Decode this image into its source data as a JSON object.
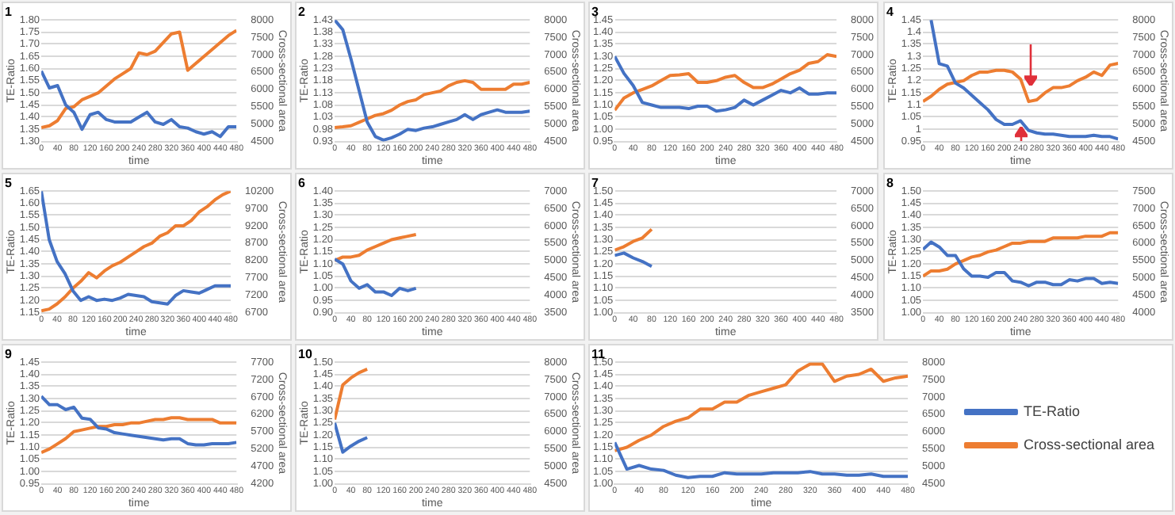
{
  "chart_data": [
    {
      "type": "line",
      "title": "1",
      "xlabel": "time",
      "ylabel": "TE-Ratio",
      "y2label": "Cross-sectional area",
      "marker": "none",
      "grid": "y",
      "x": [
        0,
        20,
        40,
        60,
        80,
        100,
        120,
        140,
        160,
        180,
        200,
        220,
        240,
        260,
        280,
        300,
        320,
        340,
        360,
        380,
        400,
        420,
        440,
        460,
        480
      ],
      "xlim": [
        0,
        480
      ],
      "xticks": [
        0,
        40,
        80,
        120,
        160,
        200,
        240,
        280,
        320,
        360,
        400,
        440,
        480
      ],
      "ylim": [
        1.3,
        1.8
      ],
      "yticks": [
        {
          "value": 1.3,
          "label": "1.30"
        },
        1.35,
        {
          "value": 1.4,
          "label": "1.40"
        },
        1.45,
        {
          "value": 1.5,
          "label": "1.50"
        },
        1.55,
        {
          "value": 1.6,
          "label": "1.60"
        },
        1.65,
        {
          "value": 1.7,
          "label": "1.70"
        },
        1.75,
        {
          "value": 1.8,
          "label": "1.80"
        }
      ],
      "y2lim": [
        4500,
        8000
      ],
      "y2ticks": [
        4500,
        5000,
        5500,
        6000,
        6500,
        7000,
        7500,
        8000
      ],
      "series": [
        {
          "color": "#4472c4",
          "values": [
            1.59,
            1.52,
            1.53,
            1.45,
            1.42,
            1.35,
            1.41,
            1.42,
            1.39,
            1.38,
            1.38,
            1.38,
            1.4,
            1.42,
            1.38,
            1.37,
            1.39,
            1.36,
            1.355,
            1.34,
            1.33,
            1.34,
            1.32,
            1.36,
            1.36
          ]
        },
        {
          "color": "#ed7d31",
          "axis": "y2",
          "values": [
            4900,
            4950,
            5100,
            5450,
            5500,
            5700,
            5800,
            5900,
            6100,
            6300,
            6450,
            6600,
            7050,
            7000,
            7100,
            7350,
            7600,
            7650,
            6550,
            6750,
            6950,
            7150,
            7350,
            7550,
            7700
          ]
        }
      ]
    },
    {
      "type": "line",
      "title": "2",
      "xlabel": "time",
      "ylabel": "TE-Ratio",
      "y2label": "Cross-sectional area",
      "marker": "none",
      "grid": "y",
      "x": [
        0,
        20,
        40,
        60,
        80,
        100,
        120,
        140,
        160,
        180,
        200,
        220,
        240,
        260,
        280,
        300,
        320,
        340,
        360,
        380,
        400,
        420,
        440,
        460,
        480
      ],
      "xlim": [
        0,
        480
      ],
      "xticks": [
        0,
        40,
        80,
        120,
        160,
        200,
        240,
        280,
        320,
        360,
        400,
        440,
        480
      ],
      "ylim": [
        0.93,
        1.43
      ],
      "yticks": [
        0.93,
        0.98,
        1.03,
        1.08,
        1.13,
        1.18,
        1.23,
        1.28,
        1.33,
        1.38,
        1.43
      ],
      "y2lim": [
        4500,
        8000
      ],
      "y2ticks": [
        4500,
        5000,
        5500,
        6000,
        6500,
        7000,
        7500,
        8000
      ],
      "series": [
        {
          "color": "#4472c4",
          "values": [
            1.43,
            1.39,
            1.27,
            1.14,
            1.01,
            0.95,
            0.935,
            0.945,
            0.96,
            0.98,
            0.975,
            0.985,
            0.99,
            1.0,
            1.01,
            1.02,
            1.04,
            1.02,
            1.04,
            1.05,
            1.06,
            1.05,
            1.05,
            1.05,
            1.055
          ]
        },
        {
          "color": "#ed7d31",
          "axis": "y2",
          "values": [
            4900,
            4920,
            4950,
            5050,
            5150,
            5250,
            5300,
            5400,
            5550,
            5650,
            5700,
            5850,
            5900,
            5950,
            6100,
            6200,
            6250,
            6200,
            6000,
            6000,
            6000,
            6000,
            6150,
            6150,
            6200
          ]
        }
      ]
    },
    {
      "type": "line",
      "title": "3",
      "xlabel": "time",
      "marker": "none",
      "grid": "y",
      "x": [
        0,
        20,
        40,
        60,
        80,
        100,
        120,
        140,
        160,
        180,
        200,
        220,
        240,
        260,
        280,
        300,
        320,
        340,
        360,
        380,
        400,
        420,
        440,
        460,
        480
      ],
      "xlim": [
        0,
        480
      ],
      "xticks": [
        0,
        40,
        80,
        120,
        160,
        200,
        240,
        280,
        320,
        360,
        400,
        440,
        480
      ],
      "ylim": [
        0.95,
        1.45
      ],
      "yticks": [
        0.95,
        {
          "value": 1,
          "label": "1.00"
        },
        1.05,
        {
          "value": 1.1,
          "label": "1.10"
        },
        1.15,
        {
          "value": 1.2,
          "label": "1.20"
        },
        1.25,
        {
          "value": 1.3,
          "label": "1.30"
        },
        1.35,
        {
          "value": 1.4,
          "label": "1.40"
        },
        1.45
      ],
      "y2lim": [
        4500,
        8000
      ],
      "y2ticks": [
        4500,
        5000,
        5500,
        6000,
        6500,
        7000,
        7500,
        8000
      ],
      "series": [
        {
          "color": "#4472c4",
          "values": [
            1.3,
            1.23,
            1.18,
            1.11,
            1.1,
            1.09,
            1.09,
            1.09,
            1.085,
            1.095,
            1.095,
            1.075,
            1.08,
            1.09,
            1.12,
            1.1,
            1.12,
            1.14,
            1.16,
            1.15,
            1.17,
            1.145,
            1.145,
            1.15,
            1.15
          ]
        },
        {
          "color": "#ed7d31",
          "axis": "y2",
          "values": [
            5400,
            5750,
            5900,
            6000,
            6100,
            6250,
            6400,
            6420,
            6450,
            6200,
            6200,
            6250,
            6350,
            6400,
            6200,
            6050,
            6050,
            6150,
            6300,
            6450,
            6550,
            6750,
            6800,
            7000,
            6950
          ]
        }
      ]
    },
    {
      "type": "line",
      "title": "4",
      "xlabel": "time",
      "ylabel": "TE-Ratio",
      "y2label": "Cross-sectional area",
      "marker": "none",
      "grid": "y",
      "x": [
        0,
        20,
        40,
        60,
        80,
        100,
        120,
        140,
        160,
        180,
        200,
        220,
        240,
        260,
        280,
        300,
        320,
        340,
        360,
        380,
        400,
        420,
        440,
        460,
        480
      ],
      "xlim": [
        0,
        480
      ],
      "xticks": [
        0,
        40,
        80,
        120,
        160,
        200,
        240,
        280,
        320,
        360,
        400,
        440,
        480
      ],
      "ylim": [
        0.95,
        1.45
      ],
      "yticks": [
        0.95,
        1,
        1.05,
        1.1,
        1.15,
        1.2,
        1.25,
        1.3,
        1.35,
        1.4,
        1.45
      ],
      "y2lim": [
        4500,
        8000
      ],
      "y2ticks": [
        4500,
        5000,
        5500,
        6000,
        6500,
        7000,
        7500,
        8000
      ],
      "series": [
        {
          "color": "#4472c4",
          "values": [
            null,
            1.45,
            1.27,
            1.26,
            1.19,
            1.17,
            1.14,
            1.11,
            1.08,
            1.04,
            1.02,
            1.02,
            1.035,
            0.995,
            0.985,
            0.98,
            0.98,
            0.975,
            0.97,
            0.97,
            0.97,
            0.975,
            0.97,
            0.97,
            0.96
          ]
        },
        {
          "color": "#ed7d31",
          "axis": "y2",
          "values": [
            5650,
            5800,
            6000,
            6150,
            6200,
            6250,
            6400,
            6500,
            6500,
            6550,
            6550,
            6500,
            6300,
            5650,
            5700,
            5900,
            6050,
            6050,
            6100,
            6250,
            6350,
            6500,
            6400,
            6700,
            6750
          ]
        }
      ]
    },
    {
      "type": "line",
      "title": "5",
      "xlabel": "time",
      "ylabel": "TE-Ratio",
      "y2label": "Cross-sectional area",
      "marker": "none",
      "grid": "y",
      "x": [
        0,
        20,
        40,
        60,
        80,
        100,
        120,
        140,
        160,
        180,
        200,
        220,
        240,
        260,
        280,
        300,
        320,
        340,
        360,
        380,
        400,
        420,
        440,
        460,
        480
      ],
      "xlim": [
        0,
        480
      ],
      "xticks": [
        0,
        40,
        80,
        120,
        160,
        200,
        240,
        280,
        320,
        360,
        400,
        440,
        480
      ],
      "ylim": [
        1.15,
        1.65
      ],
      "yticks": [
        1.15,
        {
          "value": 1.2,
          "label": "1.20"
        },
        1.25,
        {
          "value": 1.3,
          "label": "1.30"
        },
        1.35,
        {
          "value": 1.4,
          "label": "1.40"
        },
        1.45,
        {
          "value": 1.5,
          "label": "1.50"
        },
        1.55,
        {
          "value": 1.6,
          "label": "1.60"
        },
        1.65
      ],
      "y2lim": [
        6700,
        10200
      ],
      "y2ticks": [
        6700,
        7200,
        7700,
        8200,
        8700,
        9200,
        9700,
        10200
      ],
      "series": [
        {
          "color": "#4472c4",
          "values": [
            1.65,
            1.45,
            1.36,
            1.31,
            1.24,
            1.2,
            1.215,
            1.2,
            1.205,
            1.2,
            1.21,
            1.225,
            1.22,
            1.215,
            1.195,
            1.19,
            1.185,
            1.22,
            1.24,
            1.235,
            1.23,
            1.245,
            1.26,
            1.26,
            1.26
          ]
        },
        {
          "color": "#ed7d31",
          "axis": "y2",
          "values": [
            6750,
            6800,
            6950,
            7150,
            7400,
            7600,
            7850,
            7700,
            7900,
            8050,
            8150,
            8300,
            8450,
            8600,
            8700,
            8900,
            9000,
            9200,
            9200,
            9350,
            9600,
            9750,
            9950,
            10100,
            10200
          ]
        }
      ]
    },
    {
      "type": "line",
      "title": "6",
      "xlabel": "time",
      "ylabel": "TE-Ratio",
      "y2label": "Cross-sectional area",
      "marker": "none",
      "grid": "y",
      "x": [
        0,
        20,
        40,
        60,
        80,
        100,
        120,
        140,
        160,
        180,
        200
      ],
      "xlim": [
        0,
        480
      ],
      "xticks": [
        0,
        40,
        80,
        120,
        160,
        200,
        240,
        280,
        320,
        360,
        400,
        440,
        480
      ],
      "ylim": [
        0.9,
        1.4
      ],
      "yticks": [
        {
          "value": 0.9,
          "label": "0.90"
        },
        0.95,
        {
          "value": 1,
          "label": "1.00"
        },
        1.05,
        {
          "value": 1.1,
          "label": "1.10"
        },
        1.15,
        {
          "value": 1.2,
          "label": "1.20"
        },
        1.25,
        {
          "value": 1.3,
          "label": "1.30"
        },
        1.35,
        {
          "value": 1.4,
          "label": "1.40"
        }
      ],
      "y2lim": [
        3500,
        7000
      ],
      "y2ticks": [
        3500,
        4000,
        4500,
        5000,
        5500,
        6000,
        6500,
        7000
      ],
      "series": [
        {
          "color": "#4472c4",
          "values": [
            1.12,
            1.1,
            1.03,
            1.0,
            1.015,
            0.985,
            0.985,
            0.97,
            1.0,
            0.99,
            1.0
          ]
        },
        {
          "color": "#ed7d31",
          "axis": "y2",
          "values": [
            5000,
            5100,
            5100,
            5150,
            5300,
            5400,
            5500,
            5600,
            5650,
            5700,
            5750
          ]
        }
      ]
    },
    {
      "type": "line",
      "title": "7",
      "xlabel": "time",
      "marker": "none",
      "grid": "y",
      "x": [
        0,
        20,
        40,
        60,
        80
      ],
      "xlim": [
        0,
        480
      ],
      "xticks": [
        0,
        40,
        80,
        120,
        160,
        200,
        240,
        280,
        320,
        360,
        400,
        440,
        480
      ],
      "ylim": [
        1,
        1.5
      ],
      "yticks": [
        {
          "value": 1,
          "label": "1.00"
        },
        1.05,
        {
          "value": 1.1,
          "label": "1.10"
        },
        1.15,
        {
          "value": 1.2,
          "label": "1.20"
        },
        1.25,
        {
          "value": 1.3,
          "label": "1.30"
        },
        1.35,
        {
          "value": 1.4,
          "label": "1.40"
        },
        1.45,
        {
          "value": 1.5,
          "label": "1.50"
        }
      ],
      "y2lim": [
        3500,
        7000
      ],
      "y2ticks": [
        3500,
        4000,
        4500,
        5000,
        5500,
        6000,
        6500,
        7000
      ],
      "series": [
        {
          "color": "#4472c4",
          "values": [
            1.235,
            1.245,
            1.225,
            1.21,
            1.19
          ]
        },
        {
          "color": "#ed7d31",
          "axis": "y2",
          "values": [
            5300,
            5400,
            5550,
            5650,
            5900
          ]
        }
      ]
    },
    {
      "type": "line",
      "title": "8",
      "xlabel": "time",
      "ylabel": "TE-Ratio",
      "y2label": "Cross-sectional area",
      "marker": "none",
      "grid": "y",
      "x": [
        0,
        20,
        40,
        60,
        80,
        100,
        120,
        140,
        160,
        180,
        200,
        220,
        240,
        260,
        280,
        300,
        320,
        340,
        360,
        380,
        400,
        420,
        440,
        460,
        480
      ],
      "xlim": [
        0,
        480
      ],
      "xticks": [
        0,
        40,
        80,
        120,
        160,
        200,
        240,
        280,
        320,
        360,
        400,
        440,
        480
      ],
      "ylim": [
        1,
        1.5
      ],
      "yticks": [
        {
          "value": 1,
          "label": "1.00"
        },
        1.05,
        {
          "value": 1.1,
          "label": "1.10"
        },
        1.15,
        {
          "value": 1.2,
          "label": "1.20"
        },
        1.25,
        {
          "value": 1.3,
          "label": "1.30"
        },
        1.35,
        {
          "value": 1.4,
          "label": "1.40"
        },
        1.45,
        {
          "value": 1.5,
          "label": "1.50"
        }
      ],
      "y2lim": [
        4000,
        7500
      ],
      "y2ticks": [
        4000,
        4500,
        5000,
        5500,
        6000,
        6500,
        7000,
        7500
      ],
      "series": [
        {
          "color": "#4472c4",
          "values": [
            1.26,
            1.29,
            1.27,
            1.235,
            1.235,
            1.18,
            1.15,
            1.15,
            1.145,
            1.165,
            1.165,
            1.13,
            1.125,
            1.11,
            1.125,
            1.125,
            1.115,
            1.115,
            1.135,
            1.13,
            1.14,
            1.14,
            1.12,
            1.125,
            1.12
          ]
        },
        {
          "color": "#ed7d31",
          "axis": "y2",
          "values": [
            5050,
            5200,
            5200,
            5250,
            5400,
            5500,
            5600,
            5650,
            5750,
            5800,
            5900,
            6000,
            6000,
            6050,
            6050,
            6050,
            6150,
            6150,
            6150,
            6150,
            6200,
            6200,
            6200,
            6300,
            6300
          ]
        }
      ]
    },
    {
      "type": "line",
      "title": "9",
      "xlabel": "time",
      "ylabel": "TE-Ratio",
      "y2label": "Cross-sectional area",
      "marker": "none",
      "grid": "y",
      "x": [
        0,
        20,
        40,
        60,
        80,
        100,
        120,
        140,
        160,
        180,
        200,
        220,
        240,
        260,
        280,
        300,
        320,
        340,
        360,
        380,
        400,
        420,
        440,
        460,
        480
      ],
      "xlim": [
        0,
        480
      ],
      "xticks": [
        0,
        40,
        80,
        120,
        160,
        200,
        240,
        280,
        320,
        360,
        400,
        440,
        480
      ],
      "ylim": [
        0.95,
        1.45
      ],
      "yticks": [
        0.95,
        {
          "value": 1,
          "label": "1.00"
        },
        1.05,
        {
          "value": 1.1,
          "label": "1.10"
        },
        1.15,
        {
          "value": 1.2,
          "label": "1.20"
        },
        1.25,
        {
          "value": 1.3,
          "label": "1.30"
        },
        1.35,
        {
          "value": 1.4,
          "label": "1.40"
        },
        1.45
      ],
      "y2lim": [
        4200,
        7700
      ],
      "y2ticks": [
        4200,
        4700,
        5200,
        5700,
        6200,
        6700,
        7200,
        7700
      ],
      "series": [
        {
          "color": "#4472c4",
          "values": [
            1.31,
            1.275,
            1.275,
            1.255,
            1.265,
            1.22,
            1.215,
            1.18,
            1.175,
            1.16,
            1.155,
            1.15,
            1.145,
            1.14,
            1.135,
            1.13,
            1.135,
            1.135,
            1.115,
            1.11,
            1.11,
            1.115,
            1.115,
            1.115,
            1.12
          ]
        },
        {
          "color": "#ed7d31",
          "axis": "y2",
          "values": [
            5100,
            5200,
            5350,
            5500,
            5700,
            5750,
            5800,
            5850,
            5850,
            5900,
            5900,
            5950,
            5950,
            6000,
            6050,
            6050,
            6100,
            6100,
            6050,
            6050,
            6050,
            6050,
            5950,
            5950,
            5950
          ]
        }
      ]
    },
    {
      "type": "line",
      "title": "10",
      "xlabel": "time",
      "ylabel": "TE-Ratio",
      "y2label": "Cross-sectional area",
      "marker": "none",
      "grid": "y",
      "x": [
        0,
        20,
        40,
        60,
        80
      ],
      "xlim": [
        0,
        480
      ],
      "xticks": [
        0,
        40,
        80,
        120,
        160,
        200,
        240,
        280,
        320,
        360,
        400,
        440,
        480
      ],
      "ylim": [
        1,
        1.5
      ],
      "yticks": [
        {
          "value": 1,
          "label": "1.00"
        },
        1.05,
        {
          "value": 1.1,
          "label": "1.10"
        },
        1.15,
        {
          "value": 1.2,
          "label": "1.20"
        },
        1.25,
        {
          "value": 1.3,
          "label": "1.30"
        },
        1.35,
        {
          "value": 1.4,
          "label": "1.40"
        },
        1.45,
        {
          "value": 1.5,
          "label": "1.50"
        }
      ],
      "y2lim": [
        4500,
        8000
      ],
      "y2ticks": [
        4500,
        5000,
        5500,
        6000,
        6500,
        7000,
        7500,
        8000
      ],
      "series": [
        {
          "color": "#4472c4",
          "values": [
            1.25,
            1.13,
            1.155,
            1.175,
            1.19
          ]
        },
        {
          "color": "#ed7d31",
          "axis": "y2",
          "values": [
            6350,
            7350,
            7550,
            7700,
            7800
          ]
        }
      ]
    },
    {
      "type": "line",
      "title": "11",
      "xlabel": "time",
      "marker": "none",
      "grid": "y",
      "legend": "right",
      "x": [
        0,
        20,
        40,
        60,
        80,
        100,
        120,
        140,
        160,
        180,
        200,
        220,
        240,
        260,
        280,
        300,
        320,
        340,
        360,
        380,
        400,
        420,
        440,
        460,
        480
      ],
      "xlim": [
        0,
        480
      ],
      "xticks": [
        0,
        40,
        80,
        120,
        160,
        200,
        240,
        280,
        320,
        360,
        400,
        440,
        480
      ],
      "ylim": [
        1,
        1.5
      ],
      "yticks": [
        {
          "value": 1,
          "label": "1.00"
        },
        1.05,
        {
          "value": 1.1,
          "label": "1.10"
        },
        1.15,
        {
          "value": 1.2,
          "label": "1.20"
        },
        1.25,
        {
          "value": 1.3,
          "label": "1.30"
        },
        1.35,
        {
          "value": 1.4,
          "label": "1.40"
        },
        1.45,
        {
          "value": 1.5,
          "label": "1.50"
        }
      ],
      "y2lim": [
        4500,
        8000
      ],
      "y2ticks": [
        4500,
        5000,
        5500,
        6000,
        6500,
        7000,
        7500,
        8000
      ],
      "series": [
        {
          "name": "TE-Ratio",
          "color": "#4472c4",
          "values": [
            1.17,
            1.06,
            1.075,
            1.06,
            1.055,
            1.035,
            1.025,
            1.03,
            1.03,
            1.045,
            1.04,
            1.04,
            1.04,
            1.045,
            1.045,
            1.045,
            1.05,
            1.04,
            1.04,
            1.035,
            1.035,
            1.04,
            1.03,
            1.03,
            1.03
          ]
        },
        {
          "name": "Cross-sectional area",
          "color": "#ed7d31",
          "axis": "y2",
          "values": [
            5450,
            5550,
            5750,
            5900,
            6150,
            6300,
            6400,
            6650,
            6650,
            6850,
            6850,
            7050,
            7150,
            7250,
            7350,
            7750,
            7950,
            7950,
            7450,
            7600,
            7650,
            7800,
            7450,
            7550,
            7600
          ]
        }
      ]
    }
  ]
}
